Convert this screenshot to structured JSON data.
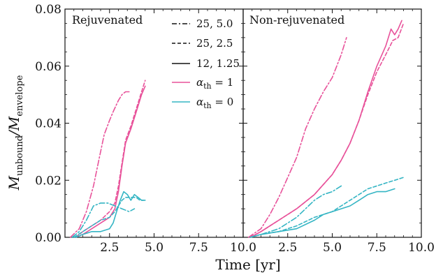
{
  "chart_data": {
    "type": "line",
    "xlabel": "Time [yr]",
    "ylabel": "M_unbound/M_envelope",
    "ylabel_parts": {
      "main": "M",
      "sub1": "unbound",
      "slash": "/M",
      "sub2": "envelope"
    },
    "colors": {
      "alpha_th_1": "#e8529a",
      "alpha_th_0": "#35b5c4"
    },
    "legend": {
      "placement": "left panel, top-right",
      "entries": [
        {
          "label": "25, 5.0",
          "style": "dashdot"
        },
        {
          "label": "25, 2.5",
          "style": "dashed"
        },
        {
          "label": "12, 1.25",
          "style": "solid"
        },
        {
          "label_main": "α",
          "label_sub": "th",
          "label_rest": " = 1",
          "color_key": "alpha_th_1",
          "style": "solid"
        },
        {
          "label_main": "α",
          "label_sub": "th",
          "label_rest": " = 0",
          "color_key": "alpha_th_0",
          "style": "solid"
        }
      ]
    },
    "panels": [
      {
        "title": "Rejuvenated",
        "xlim": [
          0,
          10
        ],
        "ylim": [
          0,
          0.08
        ],
        "xticks": [
          2.5,
          5.0,
          7.5,
          10.0
        ],
        "xtick_labels": [
          "2.5",
          "5.0",
          "7.5",
          "10.0"
        ],
        "yticks": [
          0.0,
          0.02,
          0.04,
          0.06,
          0.08
        ],
        "ytick_labels": [
          "0.00",
          "0.02",
          "0.04",
          "0.06",
          "0.08"
        ],
        "series": [
          {
            "color_key": "alpha_th_1",
            "style": "dashdot",
            "x": [
              0.3,
              0.8,
              1.2,
              1.6,
              1.9,
              2.2,
              2.5,
              2.7,
              3.0,
              3.2,
              3.4,
              3.6
            ],
            "y": [
              0.0,
              0.003,
              0.009,
              0.018,
              0.027,
              0.036,
              0.041,
              0.044,
              0.048,
              0.05,
              0.051,
              0.051
            ]
          },
          {
            "color_key": "alpha_th_1",
            "style": "dashed",
            "x": [
              0.6,
              1.0,
              1.5,
              2.0,
              2.5,
              2.8,
              3.0,
              3.2,
              3.4,
              3.7,
              4.0,
              4.3,
              4.5
            ],
            "y": [
              0.0,
              0.002,
              0.004,
              0.006,
              0.009,
              0.012,
              0.018,
              0.026,
              0.034,
              0.039,
              0.045,
              0.051,
              0.055
            ]
          },
          {
            "color_key": "alpha_th_1",
            "style": "solid",
            "x": [
              0.6,
              1.0,
              1.5,
              2.0,
              2.5,
              2.8,
              3.0,
              3.2,
              3.4,
              3.7,
              4.0,
              4.3,
              4.5
            ],
            "y": [
              0.0,
              0.001,
              0.003,
              0.005,
              0.007,
              0.01,
              0.016,
              0.025,
              0.033,
              0.038,
              0.044,
              0.05,
              0.053
            ]
          },
          {
            "color_key": "alpha_th_0",
            "style": "dashdot",
            "x": [
              0.4,
              0.8,
              1.2,
              1.6,
              2.0,
              2.4,
              2.8,
              3.2,
              3.6,
              3.9
            ],
            "y": [
              0.0,
              0.002,
              0.006,
              0.011,
              0.012,
              0.012,
              0.011,
              0.01,
              0.009,
              0.01
            ]
          },
          {
            "color_key": "alpha_th_0",
            "style": "dashed",
            "x": [
              0.5,
              1.0,
              1.5,
              2.0,
              2.5,
              2.8,
              3.0,
              3.2,
              3.4,
              3.6,
              3.8,
              4.0,
              4.2,
              4.4
            ],
            "y": [
              0.0,
              0.002,
              0.004,
              0.006,
              0.007,
              0.009,
              0.011,
              0.013,
              0.014,
              0.014,
              0.014,
              0.014,
              0.013,
              0.013
            ]
          },
          {
            "color_key": "alpha_th_0",
            "style": "solid",
            "x": [
              0.6,
              1.0,
              1.5,
              2.0,
              2.5,
              2.7,
              2.9,
              3.1,
              3.3,
              3.5,
              3.7,
              3.9,
              4.1,
              4.3,
              4.5
            ],
            "y": [
              0.0,
              0.001,
              0.002,
              0.002,
              0.003,
              0.005,
              0.009,
              0.013,
              0.016,
              0.015,
              0.013,
              0.015,
              0.014,
              0.013,
              0.013
            ]
          }
        ]
      },
      {
        "title": "Non-rejuvenated",
        "xlim": [
          0,
          10
        ],
        "ylim": [
          0,
          0.08
        ],
        "xticks": [
          2.5,
          5.0,
          7.5,
          10.0
        ],
        "xtick_labels": [
          "2.5",
          "5.0",
          "7.5",
          "10.0"
        ],
        "series": [
          {
            "color_key": "alpha_th_1",
            "style": "dashdot",
            "x": [
              0.3,
              1.0,
              1.5,
              2.0,
              2.5,
              3.0,
              3.5,
              4.0,
              4.5,
              5.0,
              5.5,
              5.8
            ],
            "y": [
              0.0,
              0.003,
              0.008,
              0.014,
              0.021,
              0.028,
              0.038,
              0.045,
              0.051,
              0.056,
              0.064,
              0.07
            ]
          },
          {
            "color_key": "alpha_th_1",
            "style": "dashed",
            "x": [
              0.4,
              1.0,
              2.0,
              3.0,
              4.0,
              5.0,
              5.5,
              6.0,
              6.5,
              7.0,
              7.5,
              8.0,
              8.4,
              8.7,
              9.0
            ],
            "y": [
              0.0,
              0.002,
              0.006,
              0.01,
              0.015,
              0.022,
              0.027,
              0.033,
              0.041,
              0.05,
              0.058,
              0.064,
              0.069,
              0.07,
              0.075
            ]
          },
          {
            "color_key": "alpha_th_1",
            "style": "solid",
            "x": [
              0.4,
              1.0,
              2.0,
              3.0,
              4.0,
              5.0,
              5.5,
              6.0,
              6.5,
              7.0,
              7.5,
              8.0,
              8.3,
              8.5,
              8.7,
              8.9
            ],
            "y": [
              0.0,
              0.002,
              0.006,
              0.01,
              0.015,
              0.022,
              0.027,
              0.033,
              0.041,
              0.051,
              0.06,
              0.067,
              0.073,
              0.071,
              0.073,
              0.076
            ]
          },
          {
            "color_key": "alpha_th_0",
            "style": "dashdot",
            "x": [
              0.4,
              1.0,
              2.0,
              3.0,
              3.5,
              4.0,
              4.5,
              5.0,
              5.5
            ],
            "y": [
              0.0,
              0.001,
              0.003,
              0.007,
              0.01,
              0.013,
              0.015,
              0.016,
              0.018
            ]
          },
          {
            "color_key": "alpha_th_0",
            "style": "dashed",
            "x": [
              0.4,
              1.0,
              2.0,
              3.0,
              4.0,
              5.0,
              5.5,
              6.0,
              6.5,
              7.0,
              7.5,
              8.0,
              8.5,
              9.0
            ],
            "y": [
              0.0,
              0.001,
              0.002,
              0.004,
              0.007,
              0.009,
              0.011,
              0.013,
              0.015,
              0.017,
              0.018,
              0.019,
              0.02,
              0.021
            ]
          },
          {
            "color_key": "alpha_th_0",
            "style": "solid",
            "x": [
              0.4,
              1.0,
              2.0,
              3.0,
              4.0,
              4.5,
              5.0,
              5.5,
              6.0,
              6.5,
              7.0,
              7.5,
              8.0,
              8.5
            ],
            "y": [
              0.0,
              0.001,
              0.002,
              0.003,
              0.006,
              0.008,
              0.009,
              0.01,
              0.011,
              0.013,
              0.015,
              0.016,
              0.016,
              0.017
            ]
          }
        ]
      }
    ]
  }
}
